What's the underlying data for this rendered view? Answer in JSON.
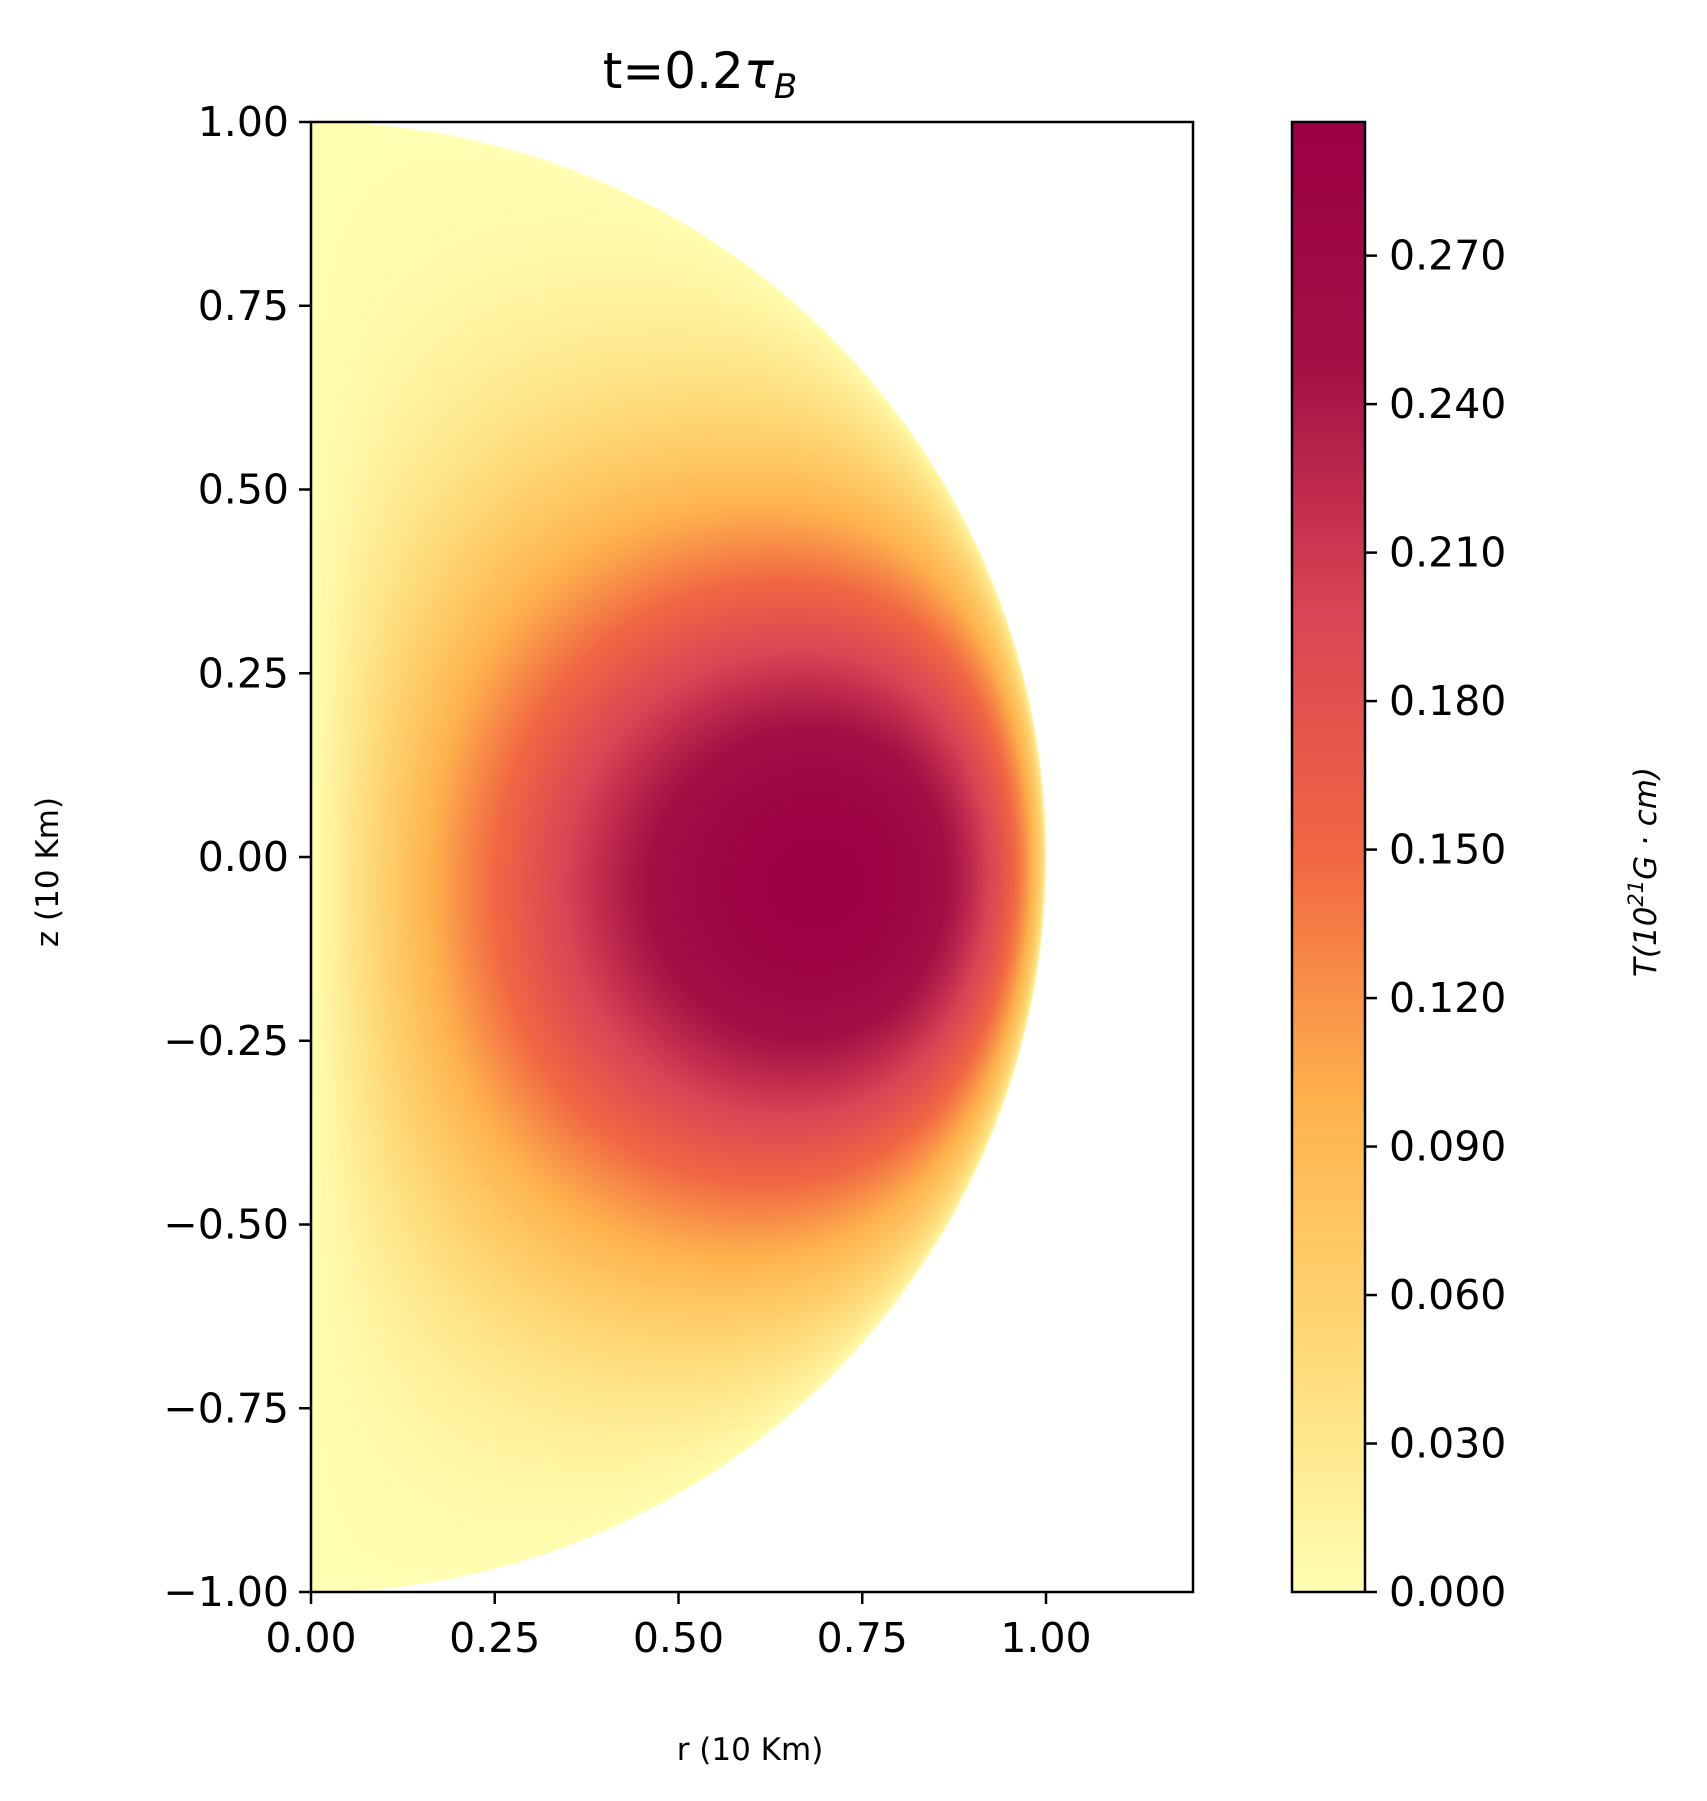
{
  "chart_data": {
    "type": "heatmap",
    "title": "t=0.2",
    "title_symbol": "τ",
    "title_subscript": "B",
    "xlabel": "r (10 Km)",
    "ylabel": "z (10 Km)",
    "xlim": [
      0.0,
      1.2
    ],
    "ylim": [
      -1.0,
      1.0
    ],
    "x_ticks": [
      "0.00",
      "0.25",
      "0.50",
      "0.75",
      "1.00"
    ],
    "x_tick_values": [
      0.0,
      0.25,
      0.5,
      0.75,
      1.0
    ],
    "y_ticks": [
      "−1.00",
      "−0.75",
      "−0.50",
      "−0.25",
      "0.00",
      "0.25",
      "0.50",
      "0.75",
      "1.00"
    ],
    "y_tick_values": [
      -1.0,
      -0.75,
      -0.5,
      -0.25,
      0.0,
      0.25,
      0.5,
      0.75,
      1.0
    ],
    "domain": "half-disk r^2 + z^2 <= 1, r >= 0",
    "field_peak": {
      "r": 0.75,
      "z": -0.05,
      "value": 0.297
    },
    "colorbar": {
      "label_symbol": "T",
      "label_base": "(10",
      "label_exponent": "21",
      "label_unit": "G · cm)",
      "min": 0.0,
      "max": 0.297,
      "ticks": [
        "0.000",
        "0.030",
        "0.060",
        "0.090",
        "0.120",
        "0.150",
        "0.180",
        "0.210",
        "0.240",
        "0.270"
      ],
      "tick_values": [
        0.0,
        0.03,
        0.06,
        0.09,
        0.12,
        0.15,
        0.18,
        0.21,
        0.24,
        0.27
      ],
      "colormap": "YlOrRd-like",
      "colors": [
        "#ffffb2",
        "#fed976",
        "#feb24c",
        "#f16743",
        "#d94555",
        "#a50f45",
        "#9b0044"
      ]
    },
    "grid": false,
    "legend": "none"
  }
}
